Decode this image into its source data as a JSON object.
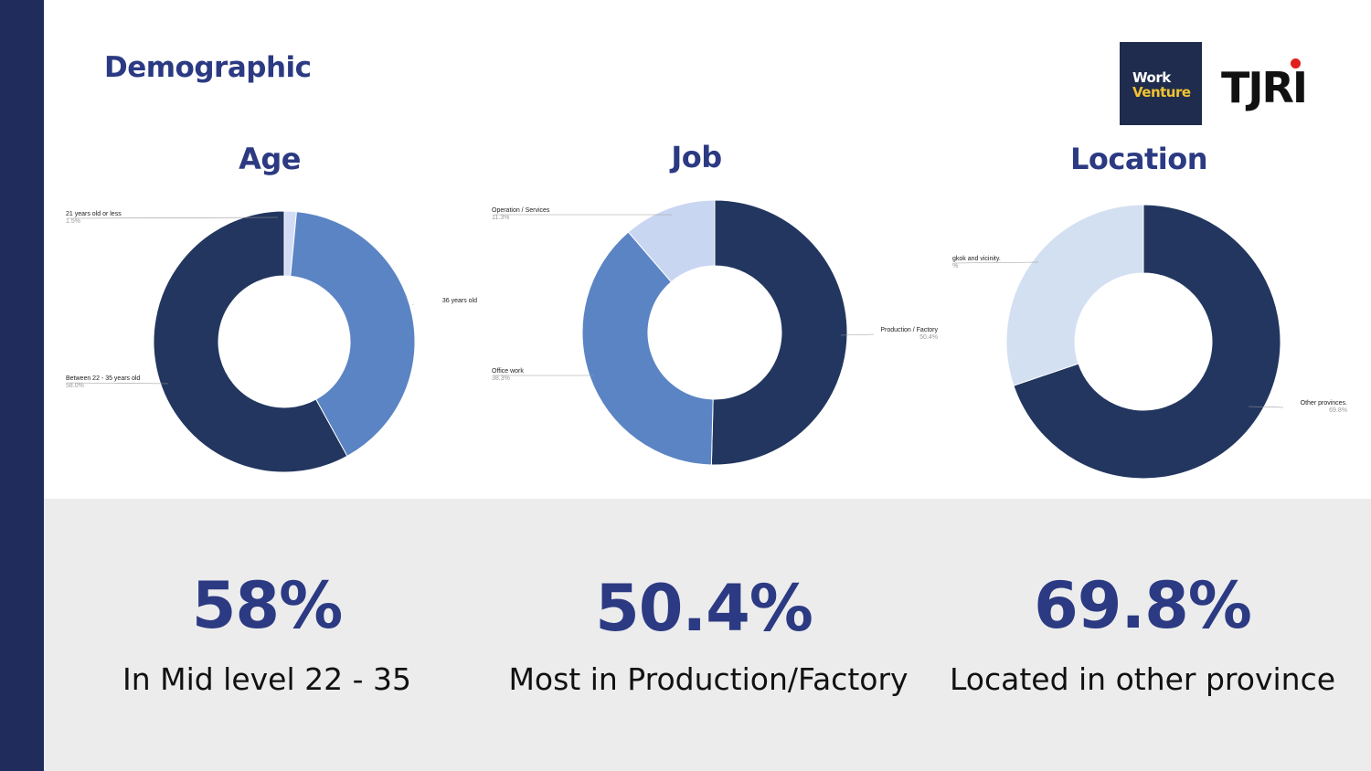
{
  "page": {
    "title": "Demographic"
  },
  "logos": {
    "workventure_line1": "Work",
    "workventure_line2": "Venture",
    "tjri": "TJRI"
  },
  "colors": {
    "accent": "#2b3a82",
    "sidebar": "#1f2c5c",
    "panel": "#ececed"
  },
  "chart_data": [
    {
      "type": "pie",
      "title": "Age",
      "labels": [
        "21 years old or less",
        "36 years old",
        "Between 22 - 35 years old"
      ],
      "values": [
        1.5,
        40.5,
        58.0
      ],
      "pct_labels": [
        "1.5%",
        "",
        "58.0%"
      ],
      "colors": [
        "#d3dcf4",
        "#5b84c4",
        "#22365f"
      ]
    },
    {
      "type": "pie",
      "title": "Job",
      "labels": [
        "Production / Factory",
        "Office work",
        "Operation / Services"
      ],
      "values": [
        50.4,
        38.3,
        11.3
      ],
      "pct_labels": [
        "50.4%",
        "38.3%",
        "11.3%"
      ],
      "colors": [
        "#22365f",
        "#5b84c4",
        "#c9d6f2"
      ]
    },
    {
      "type": "pie",
      "title": "Location",
      "labels": [
        "Other provinces.",
        "gkok and vicinity."
      ],
      "values": [
        69.8,
        30.2
      ],
      "pct_labels": [
        "69.8%",
        "%"
      ],
      "colors": [
        "#22365f",
        "#d3e0f1"
      ]
    }
  ],
  "stats": [
    {
      "value": "58%",
      "label": "In Mid level 22 - 35"
    },
    {
      "value": "50.4%",
      "label": "Most in Production/Factory"
    },
    {
      "value": "69.8%",
      "label": "Located in other province"
    }
  ]
}
